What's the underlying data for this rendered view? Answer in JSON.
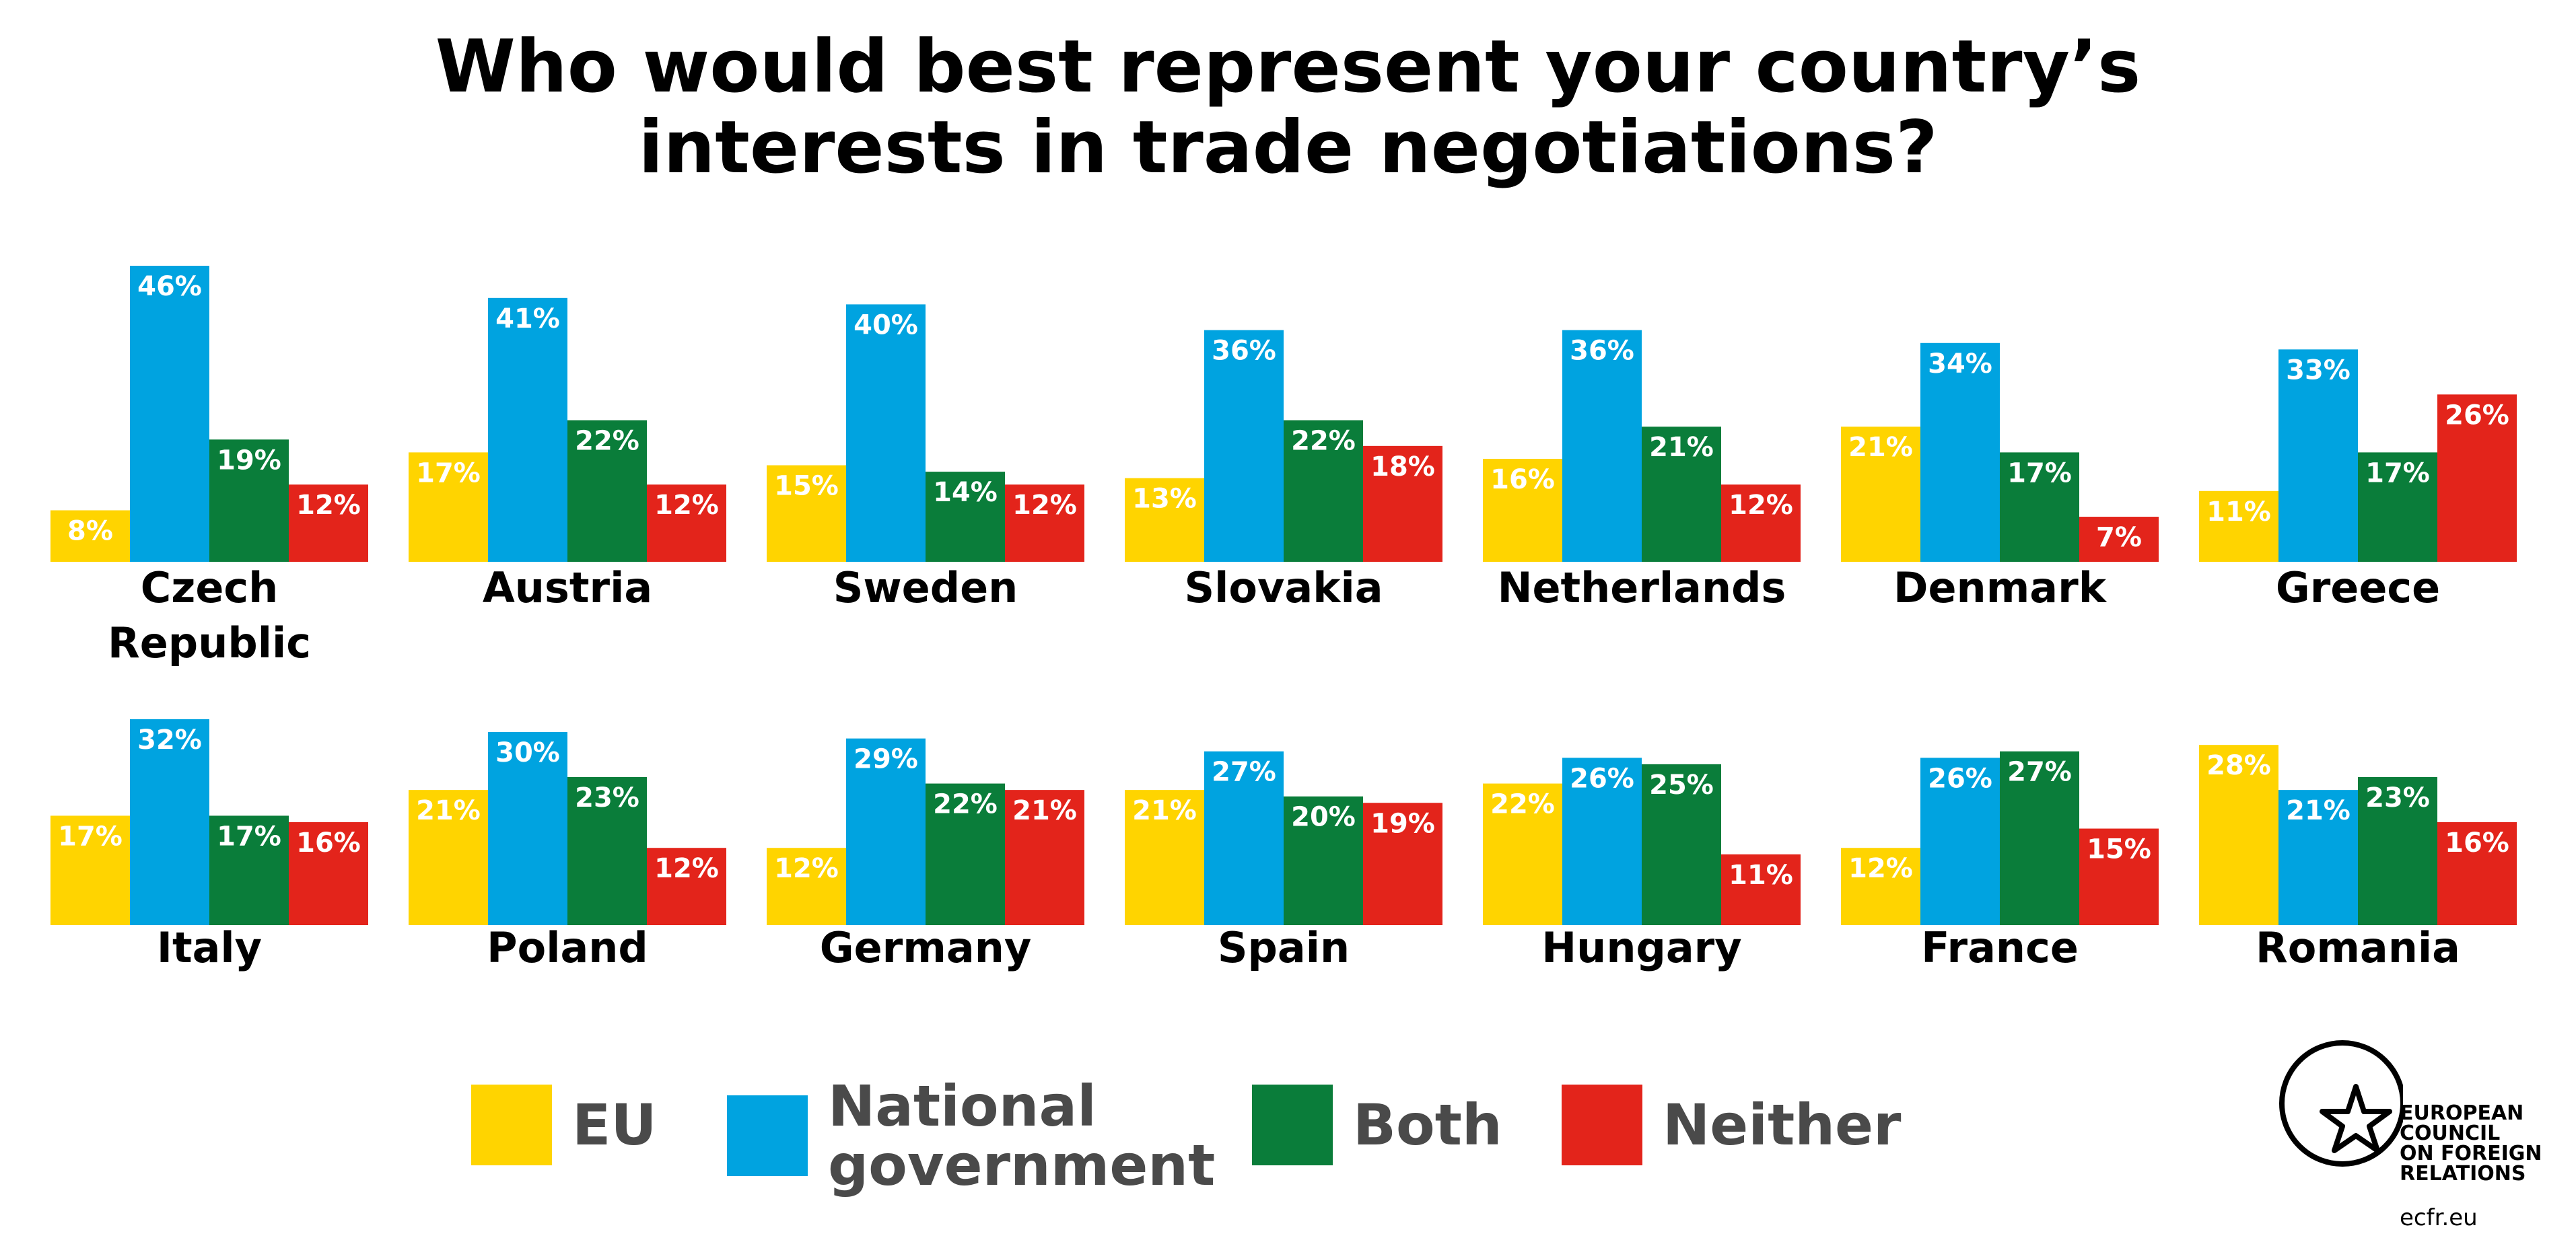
{
  "title_line1": "Who would best represent your country’s",
  "title_line2": "interests in trade negotiations?",
  "colors": {
    "EU": "#ffd400",
    "National government": "#00a3e0",
    "Both": "#0a7d3a",
    "Neither": "#e3241b"
  },
  "legend": [
    {
      "label": "EU",
      "color": "#ffd400"
    },
    {
      "label": "National government",
      "line1": "National",
      "line2": "government",
      "color": "#00a3e0"
    },
    {
      "label": "Both",
      "color": "#0a7d3a"
    },
    {
      "label": "Neither",
      "color": "#e3241b"
    }
  ],
  "logo": {
    "lines": [
      "EUROPEAN",
      "COUNCIL",
      "ON FOREIGN",
      "RELATIONS"
    ],
    "url": "ecfr.eu"
  },
  "chart_data": [
    {
      "type": "bar",
      "title": "Czech Republic",
      "categories": [
        "EU",
        "National government",
        "Both",
        "Neither"
      ],
      "values": [
        8,
        46,
        19,
        12
      ],
      "ylim": [
        0,
        46
      ]
    },
    {
      "type": "bar",
      "title": "Austria",
      "categories": [
        "EU",
        "National government",
        "Both",
        "Neither"
      ],
      "values": [
        17,
        41,
        22,
        12
      ],
      "ylim": [
        0,
        46
      ]
    },
    {
      "type": "bar",
      "title": "Sweden",
      "categories": [
        "EU",
        "National government",
        "Both",
        "Neither"
      ],
      "values": [
        15,
        40,
        14,
        12
      ],
      "ylim": [
        0,
        46
      ]
    },
    {
      "type": "bar",
      "title": "Slovakia",
      "categories": [
        "EU",
        "National government",
        "Both",
        "Neither"
      ],
      "values": [
        13,
        36,
        22,
        18
      ],
      "ylim": [
        0,
        46
      ]
    },
    {
      "type": "bar",
      "title": "Netherlands",
      "categories": [
        "EU",
        "National government",
        "Both",
        "Neither"
      ],
      "values": [
        16,
        36,
        21,
        12
      ],
      "ylim": [
        0,
        46
      ]
    },
    {
      "type": "bar",
      "title": "Denmark",
      "categories": [
        "EU",
        "National government",
        "Both",
        "Neither"
      ],
      "values": [
        21,
        34,
        17,
        7
      ],
      "ylim": [
        0,
        46
      ]
    },
    {
      "type": "bar",
      "title": "Greece",
      "categories": [
        "EU",
        "National government",
        "Both",
        "Neither"
      ],
      "values": [
        11,
        33,
        17,
        26
      ],
      "ylim": [
        0,
        46
      ]
    },
    {
      "type": "bar",
      "title": "Italy",
      "categories": [
        "EU",
        "National government",
        "Both",
        "Neither"
      ],
      "values": [
        17,
        32,
        17,
        16
      ],
      "ylim": [
        0,
        46
      ]
    },
    {
      "type": "bar",
      "title": "Poland",
      "categories": [
        "EU",
        "National government",
        "Both",
        "Neither"
      ],
      "values": [
        21,
        30,
        23,
        12
      ],
      "ylim": [
        0,
        46
      ]
    },
    {
      "type": "bar",
      "title": "Germany",
      "categories": [
        "EU",
        "National government",
        "Both",
        "Neither"
      ],
      "values": [
        12,
        29,
        22,
        21
      ],
      "ylim": [
        0,
        46
      ]
    },
    {
      "type": "bar",
      "title": "Spain",
      "categories": [
        "EU",
        "National government",
        "Both",
        "Neither"
      ],
      "values": [
        21,
        27,
        20,
        19
      ],
      "ylim": [
        0,
        46
      ]
    },
    {
      "type": "bar",
      "title": "Hungary",
      "categories": [
        "EU",
        "National government",
        "Both",
        "Neither"
      ],
      "values": [
        22,
        26,
        25,
        11
      ],
      "ylim": [
        0,
        46
      ]
    },
    {
      "type": "bar",
      "title": "France",
      "categories": [
        "EU",
        "National government",
        "Both",
        "Neither"
      ],
      "values": [
        12,
        26,
        27,
        15
      ],
      "ylim": [
        0,
        46
      ]
    },
    {
      "type": "bar",
      "title": "Romania",
      "categories": [
        "EU",
        "National government",
        "Both",
        "Neither"
      ],
      "values": [
        28,
        21,
        23,
        16
      ],
      "ylim": [
        0,
        46
      ]
    }
  ]
}
